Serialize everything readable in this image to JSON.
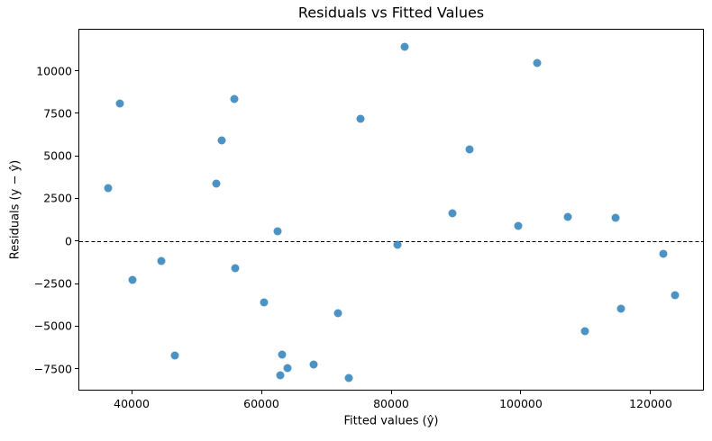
{
  "chart_data": {
    "type": "scatter",
    "title": "Residuals vs Fitted Values",
    "xlabel": "Fitted values (ŷ)",
    "ylabel": "Residuals (y − ŷ)",
    "xlim": [
      31800,
      128200
    ],
    "ylim": [
      -8790,
      12460
    ],
    "x_ticks": [
      40000,
      60000,
      80000,
      100000,
      120000
    ],
    "y_ticks": [
      -7500,
      -5000,
      -2500,
      0,
      2500,
      5000,
      7500,
      10000
    ],
    "grid": false,
    "legend": null,
    "marker_color": "#1f77b4",
    "marker_alpha": 0.8,
    "axis_color": "#000000",
    "zero_line": {
      "y": 0,
      "style": "dashed",
      "color": "#000000"
    },
    "points": [
      [
        36300,
        3160
      ],
      [
        38000,
        8100
      ],
      [
        40000,
        -2250
      ],
      [
        44500,
        -1130
      ],
      [
        46500,
        -6680
      ],
      [
        52900,
        3420
      ],
      [
        53800,
        5960
      ],
      [
        55700,
        8400
      ],
      [
        55800,
        -1560
      ],
      [
        60300,
        -3570
      ],
      [
        62300,
        620
      ],
      [
        62800,
        -7830
      ],
      [
        63000,
        -6620
      ],
      [
        63900,
        -7400
      ],
      [
        67900,
        -7220
      ],
      [
        71600,
        -4180
      ],
      [
        73300,
        -7980
      ],
      [
        75200,
        7210
      ],
      [
        80900,
        -200
      ],
      [
        82000,
        11430
      ],
      [
        89300,
        1690
      ],
      [
        92000,
        5430
      ],
      [
        99500,
        950
      ],
      [
        102300,
        10500
      ],
      [
        107100,
        1460
      ],
      [
        109700,
        -5230
      ],
      [
        114500,
        1430
      ],
      [
        115300,
        -3930
      ],
      [
        121800,
        -700
      ],
      [
        123600,
        -3130
      ]
    ]
  }
}
